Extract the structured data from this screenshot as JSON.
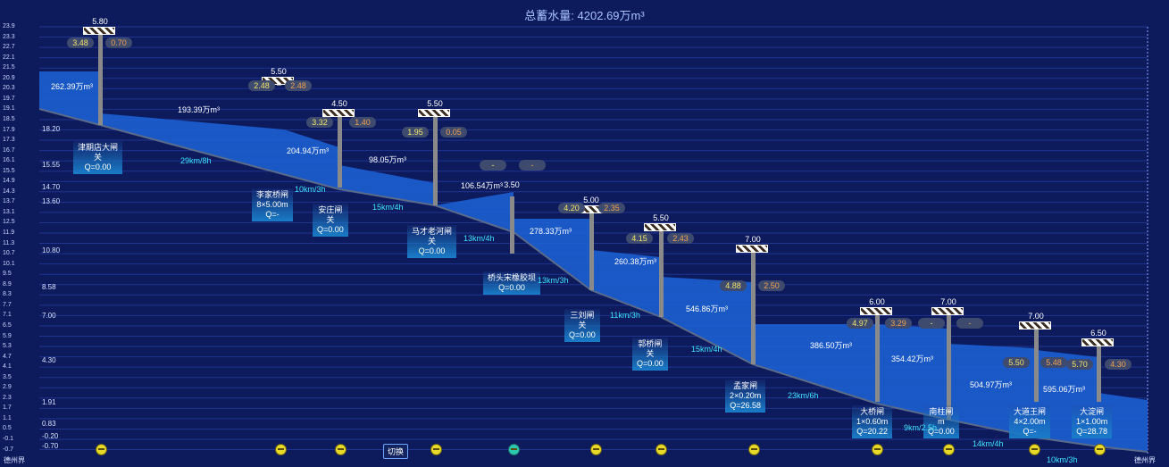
{
  "header": {
    "title_label": "总蓄水量:",
    "total_value": "4202.69万m³"
  },
  "y_axis_ticks": [
    "23.9",
    "23.3",
    "22.7",
    "22.1",
    "21.5",
    "20.9",
    "20.3",
    "19.7",
    "19.1",
    "18.5",
    "17.9",
    "17.3",
    "16.7",
    "16.1",
    "15.5",
    "14.9",
    "14.3",
    "13.7",
    "13.1",
    "12.5",
    "11.9",
    "11.3",
    "10.7",
    "10.1",
    "9.5",
    "8.9",
    "8.3",
    "7.7",
    "7.1",
    "6.5",
    "5.9",
    "5.3",
    "4.7",
    "4.1",
    "3.5",
    "2.9",
    "2.3",
    "1.7",
    "1.1",
    "0.5",
    "-0.1",
    "-0.7"
  ],
  "level_labels": [
    "18.20",
    "15.55",
    "14.70",
    "13.60",
    "10.80",
    "8.58",
    "7.00",
    "4.30",
    "1.91",
    "0.83",
    "-0.20",
    "-0.70"
  ],
  "gates": [
    {
      "name": "津期店大闸",
      "spec": "",
      "status": "关",
      "flow": "Q=0.00",
      "height": "5.80",
      "up": "3.48",
      "down": "0.70"
    },
    {
      "name": "",
      "spec": "",
      "status": "",
      "flow": "",
      "height": "5.50",
      "up": "2.48",
      "down": "2.48"
    },
    {
      "name": "李家桥闸",
      "spec": "8×5.00m",
      "status": "",
      "flow": "Q=-",
      "height": "",
      "up": "",
      "down": ""
    },
    {
      "name": "安庄闸",
      "spec": "",
      "status": "关",
      "flow": "Q=0.00",
      "height": "4.50",
      "up": "3.32",
      "down": "1.40"
    },
    {
      "name": "马才老河闸",
      "spec": "",
      "status": "关",
      "flow": "Q=0.00",
      "height": "5.50",
      "up": "1.95",
      "down": "0.05"
    },
    {
      "name": "桥头宋橡胶坝",
      "spec": "",
      "status": "",
      "flow": "Q=0.00",
      "height": "3.50",
      "up": "-",
      "down": "-"
    },
    {
      "name": "三刘闸",
      "spec": "",
      "status": "关",
      "flow": "Q=0.00",
      "height": "5.00",
      "up": "4.20",
      "down": "2.35"
    },
    {
      "name": "郭桥闸",
      "spec": "",
      "status": "关",
      "flow": "Q=0.00",
      "height": "5.50",
      "up": "4.15",
      "down": "2.43"
    },
    {
      "name": "孟家闸",
      "spec": "2×0.20m",
      "status": "",
      "flow": "Q=26.58",
      "height": "7.00",
      "up": "4.88",
      "down": "2.50"
    },
    {
      "name": "大桥闸",
      "spec": "1×0.60m",
      "status": "",
      "flow": "Q=20.22",
      "height": "6.00",
      "up": "4.97",
      "down": "3.29"
    },
    {
      "name": "南柱闸",
      "spec": "",
      "status": "",
      "flow": "Q=0.00",
      "height": "7.00",
      "up": "-",
      "down": "-"
    },
    {
      "name": "大道王闸",
      "spec": "4×2.00m",
      "status": "",
      "flow": "Q=-",
      "height": "7.00",
      "up": "5.50",
      "down": "5.48"
    },
    {
      "name": "大淀闸",
      "spec": "1×1.00m",
      "status": "",
      "flow": "Q=28.78",
      "height": "6.50",
      "up": "5.70",
      "down": "4.30"
    }
  ],
  "gate_m_label": "m",
  "volumes": [
    "262.39万m³",
    "193.39万m³",
    "204.94万m³",
    "98.05万m³",
    "106.54万m³",
    "278.33万m³",
    "260.38万m³",
    "546.86万m³",
    "386.50万m³",
    "354.42万m³",
    "504.97万m³",
    "595.06万m³"
  ],
  "speeds": [
    "29km/8h",
    "10km/3h",
    "15km/4h",
    "13km/4h",
    "13km/3h",
    "11km/3h",
    "15km/4h",
    "23km/6h",
    "9km/2.5h",
    "14km/4h",
    "10km/3h"
  ],
  "switch_label": "切换",
  "edge_left": "德州界",
  "edge_right": "德州界",
  "colors": {
    "background": "#0d1a5c",
    "water": "#1c5fd1",
    "accent": "#3ee6ff"
  }
}
